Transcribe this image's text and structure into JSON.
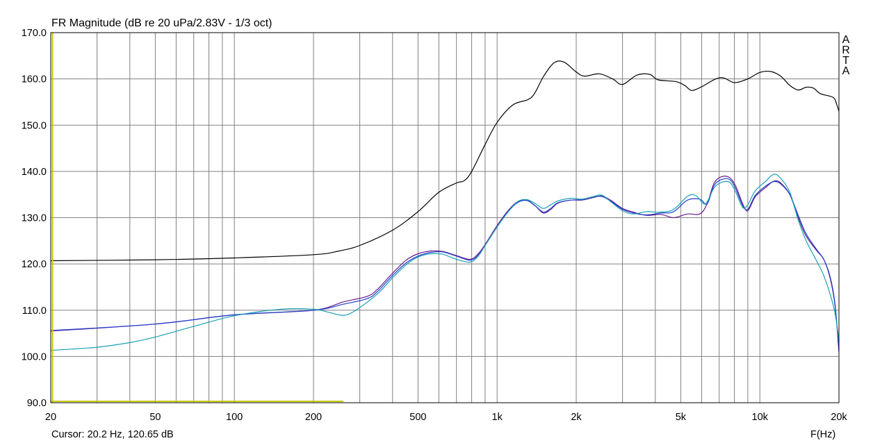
{
  "title": "FR Magnitude (dB re 20 uPa/2.83V - 1/3 oct)",
  "watermark": "ARTA",
  "cursor_readout": "Cursor: 20.2 Hz, 120.65 dB",
  "colors": {
    "background": "#ffffff",
    "grid": "#808080",
    "frame": "#000000",
    "cursor": "#c8c800",
    "series_black": "#000000",
    "series_purple": "#6a1a8a",
    "series_blue": "#1c3ecf",
    "series_cyan": "#19a0b4"
  },
  "chart_data": {
    "type": "line",
    "title": "FR Magnitude (dB re 20 uPa/2.83V - 1/3 oct)",
    "xlabel": "F(Hz)",
    "ylabel": "",
    "x_scale": "log",
    "xlim": [
      20,
      20000
    ],
    "ylim": [
      90,
      170
    ],
    "grid": true,
    "x_tick_labels": [
      {
        "value": 20,
        "label": "20"
      },
      {
        "value": 50,
        "label": "50"
      },
      {
        "value": 100,
        "label": "100"
      },
      {
        "value": 200,
        "label": "200"
      },
      {
        "value": 500,
        "label": "500"
      },
      {
        "value": 1000,
        "label": "1k"
      },
      {
        "value": 2000,
        "label": "2k"
      },
      {
        "value": 5000,
        "label": "5k"
      },
      {
        "value": 10000,
        "label": "10k"
      },
      {
        "value": 20000,
        "label": "20k"
      }
    ],
    "y_tick_labels": [
      {
        "value": 90,
        "label": "90.0"
      },
      {
        "value": 100,
        "label": "100.0"
      },
      {
        "value": 110,
        "label": "110.0"
      },
      {
        "value": 120,
        "label": "120.0"
      },
      {
        "value": 130,
        "label": "130.0"
      },
      {
        "value": 140,
        "label": "140.0"
      },
      {
        "value": 150,
        "label": "150.0"
      },
      {
        "value": 160,
        "label": "160.0"
      },
      {
        "value": 170,
        "label": "170.0"
      }
    ],
    "cursor": {
      "x": 20.2,
      "y": 120.65
    },
    "series": [
      {
        "color": "#000000",
        "points": [
          [
            20,
            120.7
          ],
          [
            50,
            120.9
          ],
          [
            100,
            121.3
          ],
          [
            200,
            122.0
          ],
          [
            250,
            122.8
          ],
          [
            300,
            124.0
          ],
          [
            400,
            127.3
          ],
          [
            500,
            131.3
          ],
          [
            600,
            135.5
          ],
          [
            700,
            137.5
          ],
          [
            750,
            138.0
          ],
          [
            800,
            140.0
          ],
          [
            900,
            145.8
          ],
          [
            1000,
            150.6
          ],
          [
            1150,
            154.4
          ],
          [
            1350,
            156.0
          ],
          [
            1500,
            160.5
          ],
          [
            1650,
            163.5
          ],
          [
            1800,
            163.6
          ],
          [
            2000,
            161.5
          ],
          [
            2150,
            160.6
          ],
          [
            2450,
            161.1
          ],
          [
            2750,
            160.0
          ],
          [
            3000,
            158.8
          ],
          [
            3400,
            160.8
          ],
          [
            3800,
            161.0
          ],
          [
            4100,
            159.8
          ],
          [
            4800,
            159.4
          ],
          [
            5200,
            158.5
          ],
          [
            5500,
            157.5
          ],
          [
            6000,
            158.3
          ],
          [
            6800,
            160.0
          ],
          [
            7300,
            160.2
          ],
          [
            8000,
            159.2
          ],
          [
            9000,
            160.0
          ],
          [
            10000,
            161.4
          ],
          [
            11000,
            161.6
          ],
          [
            12000,
            160.6
          ],
          [
            13000,
            158.6
          ],
          [
            14000,
            157.6
          ],
          [
            15000,
            158.2
          ],
          [
            16000,
            158.0
          ],
          [
            17000,
            156.8
          ],
          [
            19000,
            156.0
          ],
          [
            19600,
            154.5
          ],
          [
            20000,
            153.0
          ]
        ]
      },
      {
        "color": "#6a1a8a",
        "points": [
          [
            20,
            105.5
          ],
          [
            50,
            107.0
          ],
          [
            100,
            109.0
          ],
          [
            200,
            110.0
          ],
          [
            260,
            111.8
          ],
          [
            320,
            113.0
          ],
          [
            350,
            114.5
          ],
          [
            400,
            118.0
          ],
          [
            450,
            120.8
          ],
          [
            500,
            122.2
          ],
          [
            560,
            122.8
          ],
          [
            620,
            122.7
          ],
          [
            700,
            121.8
          ],
          [
            790,
            121.0
          ],
          [
            850,
            122.3
          ],
          [
            900,
            124.2
          ],
          [
            1000,
            128.3
          ],
          [
            1100,
            131.5
          ],
          [
            1200,
            133.5
          ],
          [
            1300,
            133.8
          ],
          [
            1400,
            132.5
          ],
          [
            1500,
            131.0
          ],
          [
            1600,
            131.8
          ],
          [
            1700,
            133.1
          ],
          [
            1900,
            133.8
          ],
          [
            2100,
            133.8
          ],
          [
            2300,
            134.3
          ],
          [
            2500,
            134.7
          ],
          [
            2700,
            133.8
          ],
          [
            3000,
            132.0
          ],
          [
            3300,
            131.2
          ],
          [
            3700,
            130.5
          ],
          [
            4200,
            130.7
          ],
          [
            4700,
            130.0
          ],
          [
            5300,
            130.8
          ],
          [
            5900,
            130.8
          ],
          [
            6300,
            133.0
          ],
          [
            6700,
            137.5
          ],
          [
            7200,
            138.9
          ],
          [
            7700,
            138.6
          ],
          [
            8100,
            136.8
          ],
          [
            8600,
            133.0
          ],
          [
            9000,
            131.5
          ],
          [
            9600,
            134.5
          ],
          [
            10500,
            136.5
          ],
          [
            11300,
            137.9
          ],
          [
            12000,
            137.5
          ],
          [
            13000,
            135.0
          ],
          [
            14000,
            130.0
          ],
          [
            15000,
            126.0
          ],
          [
            16500,
            122.8
          ],
          [
            17500,
            121.0
          ],
          [
            18500,
            117.0
          ],
          [
            19300,
            111.2
          ],
          [
            20000,
            101.2
          ]
        ]
      },
      {
        "color": "#1c3ecf",
        "points": [
          [
            20,
            105.6
          ],
          [
            50,
            107.0
          ],
          [
            100,
            109.0
          ],
          [
            200,
            110.0
          ],
          [
            260,
            111.3
          ],
          [
            320,
            112.5
          ],
          [
            350,
            114.0
          ],
          [
            400,
            117.5
          ],
          [
            450,
            120.2
          ],
          [
            500,
            121.7
          ],
          [
            560,
            122.5
          ],
          [
            620,
            122.6
          ],
          [
            700,
            121.7
          ],
          [
            790,
            120.8
          ],
          [
            850,
            122.0
          ],
          [
            900,
            124.0
          ],
          [
            1000,
            128.0
          ],
          [
            1100,
            131.3
          ],
          [
            1200,
            133.3
          ],
          [
            1300,
            133.7
          ],
          [
            1400,
            132.5
          ],
          [
            1500,
            131.2
          ],
          [
            1600,
            132.0
          ],
          [
            1700,
            133.2
          ],
          [
            1900,
            133.8
          ],
          [
            2100,
            133.9
          ],
          [
            2300,
            134.4
          ],
          [
            2500,
            134.6
          ],
          [
            2700,
            133.6
          ],
          [
            3000,
            131.8
          ],
          [
            3300,
            131.0
          ],
          [
            3700,
            130.6
          ],
          [
            4200,
            131.0
          ],
          [
            4700,
            131.3
          ],
          [
            5300,
            133.8
          ],
          [
            5900,
            134.0
          ],
          [
            6300,
            133.0
          ],
          [
            6700,
            137.0
          ],
          [
            7200,
            138.3
          ],
          [
            7700,
            138.2
          ],
          [
            8100,
            136.2
          ],
          [
            8600,
            132.6
          ],
          [
            9000,
            131.8
          ],
          [
            9600,
            134.8
          ],
          [
            10500,
            136.8
          ],
          [
            11300,
            137.8
          ],
          [
            12000,
            137.3
          ],
          [
            13000,
            135.0
          ],
          [
            14000,
            130.5
          ],
          [
            15000,
            126.5
          ],
          [
            16500,
            123.0
          ],
          [
            17500,
            121.0
          ],
          [
            18500,
            117.3
          ],
          [
            19300,
            111.5
          ],
          [
            20000,
            101.0
          ]
        ]
      },
      {
        "color": "#19a0b4",
        "points": [
          [
            20,
            101.3
          ],
          [
            30,
            102.0
          ],
          [
            40,
            103.0
          ],
          [
            50,
            104.2
          ],
          [
            70,
            106.5
          ],
          [
            100,
            108.8
          ],
          [
            150,
            110.2
          ],
          [
            200,
            110.2
          ],
          [
            230,
            109.5
          ],
          [
            260,
            108.9
          ],
          [
            290,
            110.0
          ],
          [
            350,
            113.5
          ],
          [
            400,
            117.0
          ],
          [
            450,
            119.8
          ],
          [
            500,
            121.5
          ],
          [
            560,
            122.2
          ],
          [
            620,
            122.1
          ],
          [
            700,
            121.0
          ],
          [
            790,
            120.4
          ],
          [
            850,
            121.8
          ],
          [
            900,
            124.0
          ],
          [
            1000,
            128.0
          ],
          [
            1100,
            131.2
          ],
          [
            1200,
            133.5
          ],
          [
            1300,
            133.9
          ],
          [
            1400,
            133.0
          ],
          [
            1500,
            132.0
          ],
          [
            1600,
            132.8
          ],
          [
            1700,
            133.6
          ],
          [
            1900,
            134.2
          ],
          [
            2100,
            134.0
          ],
          [
            2300,
            134.5
          ],
          [
            2500,
            134.9
          ],
          [
            2700,
            133.5
          ],
          [
            3000,
            131.5
          ],
          [
            3300,
            130.8
          ],
          [
            3700,
            131.3
          ],
          [
            4200,
            131.2
          ],
          [
            4700,
            131.8
          ],
          [
            5300,
            134.6
          ],
          [
            5700,
            134.8
          ],
          [
            6200,
            133.0
          ],
          [
            6700,
            136.5
          ],
          [
            7200,
            137.7
          ],
          [
            7700,
            137.6
          ],
          [
            8100,
            135.5
          ],
          [
            8600,
            132.2
          ],
          [
            9000,
            132.8
          ],
          [
            9600,
            135.8
          ],
          [
            10500,
            137.8
          ],
          [
            11300,
            139.4
          ],
          [
            12000,
            138.5
          ],
          [
            13000,
            135.5
          ],
          [
            14000,
            129.5
          ],
          [
            15000,
            125.0
          ],
          [
            16500,
            120.5
          ],
          [
            17500,
            117.5
          ],
          [
            18500,
            113.5
          ],
          [
            19300,
            109.5
          ],
          [
            20000,
            103.5
          ]
        ]
      }
    ]
  }
}
